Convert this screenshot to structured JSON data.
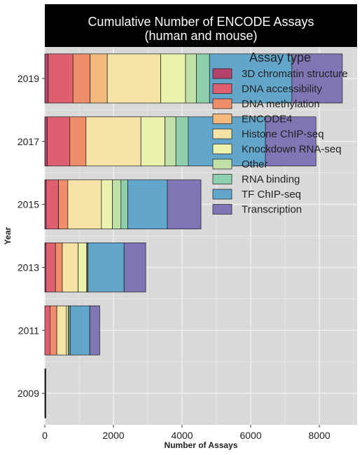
{
  "chart_data": {
    "type": "bar",
    "orientation": "horizontal",
    "stacked": true,
    "title_lines": [
      "Cumulative Number of ENCODE Assays",
      "(human and mouse)"
    ],
    "xlabel": "Number of Assays",
    "ylabel": "Year",
    "xlim": [
      0,
      9100
    ],
    "x_ticks": [
      0,
      2000,
      4000,
      6000,
      8000
    ],
    "x_tick_labels": [
      "0",
      "2000",
      "4000",
      "6000",
      "8000"
    ],
    "categories": [
      "2009",
      "2011",
      "2013",
      "2015",
      "2017",
      "2019"
    ],
    "grid": true,
    "legend_placement": "top-right",
    "legend_title": "Assay type",
    "series": [
      {
        "name": "3D chromatin structure",
        "color": "#b5416b",
        "values": [
          0,
          0,
          30,
          40,
          70,
          100
        ]
      },
      {
        "name": "DNA accessibility",
        "color": "#de6070",
        "values": [
          10,
          150,
          280,
          360,
          660,
          720
        ]
      },
      {
        "name": "DNA methylation",
        "color": "#ee8e6a",
        "values": [
          5,
          200,
          200,
          270,
          470,
          500
        ]
      },
      {
        "name": "ENCODE4",
        "color": "#f4b97c",
        "values": [
          0,
          0,
          0,
          0,
          0,
          500
        ]
      },
      {
        "name": "Histone ChIP-seq",
        "color": "#f5e4a5",
        "values": [
          5,
          280,
          460,
          980,
          1600,
          1560
        ]
      },
      {
        "name": "Knockdown RNA-seq",
        "color": "#eaf2ae",
        "values": [
          0,
          50,
          250,
          320,
          700,
          720
        ]
      },
      {
        "name": "Other",
        "color": "#bfe0a6",
        "values": [
          0,
          30,
          20,
          250,
          320,
          320
        ]
      },
      {
        "name": "RNA binding",
        "color": "#8ecfad",
        "values": [
          0,
          30,
          20,
          200,
          360,
          380
        ]
      },
      {
        "name": "TF ChIP-seq",
        "color": "#63a6cc",
        "values": [
          5,
          570,
          1050,
          1150,
          2250,
          2400
        ]
      },
      {
        "name": "Transcription",
        "color": "#7f76b6",
        "values": [
          5,
          290,
          630,
          980,
          1470,
          1470
        ]
      }
    ]
  },
  "colors": {
    "panel_background": "#d9d9d9",
    "gridline": "#eeeeee",
    "title_strip": "#000000",
    "title_text": "#ffffff",
    "bar_outline": "#1a1a1a"
  }
}
